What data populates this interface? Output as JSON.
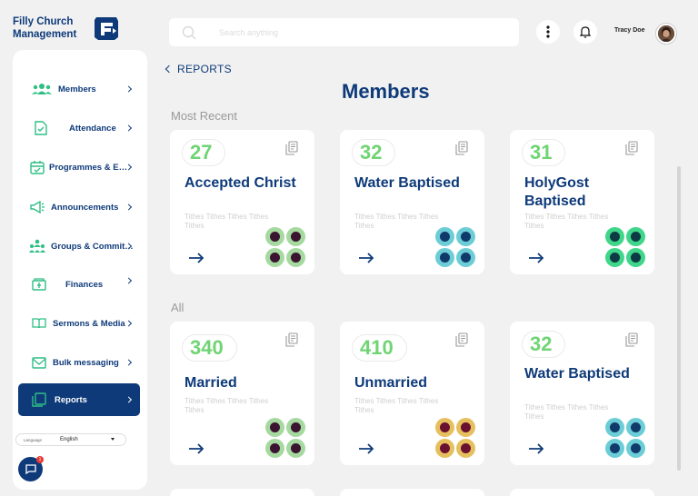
{
  "brand": {
    "name": "Filly Church Management"
  },
  "sidebar": {
    "items": [
      {
        "label": "Members",
        "icon": "members-icon",
        "active": false
      },
      {
        "label": "Attendance",
        "icon": "attendance-icon",
        "active": false
      },
      {
        "label": "Programmes & Eve...",
        "icon": "calendar-icon",
        "active": false
      },
      {
        "label": "Announcements",
        "icon": "megaphone-icon",
        "active": false
      },
      {
        "label": "Groups & Committ...",
        "icon": "groups-icon",
        "active": false
      },
      {
        "label": "Finances",
        "icon": "money-icon",
        "active": false
      },
      {
        "label": "Sermons & Media",
        "icon": "book-icon",
        "active": false
      },
      {
        "label": "Bulk messaging",
        "icon": "mail-icon",
        "active": false
      },
      {
        "label": "Reports",
        "icon": "reports-icon",
        "active": true
      }
    ],
    "language": {
      "label": "Language",
      "value": "English"
    },
    "chat_badge": "1"
  },
  "header": {
    "search_placeholder": "Search anything",
    "user_name": "Tracy Doe"
  },
  "main": {
    "back_label": "REPORTS",
    "title": "Members",
    "most_recent_title": "Most Recent",
    "all_title": "All",
    "most_recent": [
      {
        "count": "27",
        "title": "Accepted Christ",
        "sub": "Tithes Tithes Tithes Tithes Tithes",
        "ring": "#a6d9a0",
        "center": "#3a1430"
      },
      {
        "count": "32",
        "title": "Water Baptised",
        "sub": "Tithes Tithes Tithes Tithes Tithes",
        "ring": "#6ccdd6",
        "center": "#103a6a"
      },
      {
        "count": "31",
        "title": "HolyGost Baptised",
        "sub": "Tithes Tithes Tithes Tithes Tithes",
        "ring": "#3fd68a",
        "center": "#0d3a44"
      }
    ],
    "all": [
      {
        "count": "340",
        "title": "Married",
        "sub": "Tithes Tithes Tithes Tithes Tithes",
        "ring": "#a6d9a0",
        "center": "#3a1430"
      },
      {
        "count": "410",
        "title": "Unmarried",
        "sub": "Tithes Tithes Tithes Tithes Tithes",
        "ring": "#e6bf5e",
        "center": "#6a1030"
      },
      {
        "count": "32",
        "title": "Water Baptised",
        "sub": "Tithes Tithes Tithes Tithes Tithes",
        "ring": "#6ccdd6",
        "center": "#103a6a"
      }
    ]
  },
  "colors": {
    "primary": "#0e3a7a",
    "accent": "#6fd473",
    "icon_green": "#2fbf84"
  }
}
